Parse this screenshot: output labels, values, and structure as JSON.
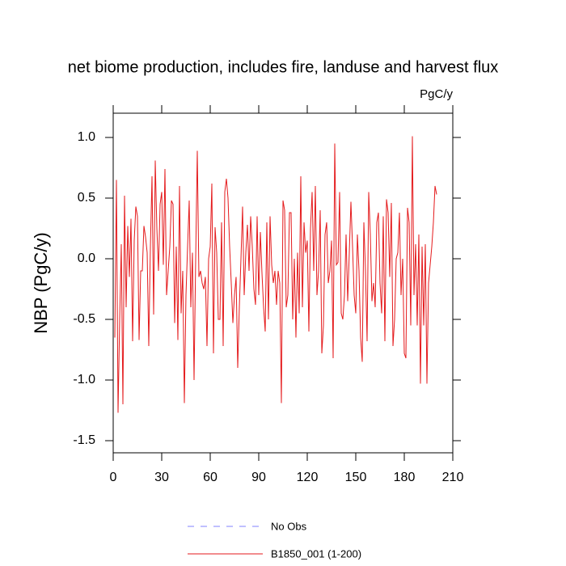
{
  "chart_data": {
    "type": "line",
    "title": "net biome production, includes fire, landuse and harvest flux",
    "units_label": "PgC/y",
    "y_label": "NBP  (PgC/y)",
    "xlim": [
      0,
      210
    ],
    "xticks": [
      0,
      30,
      60,
      90,
      120,
      150,
      180,
      210
    ],
    "ylim": [
      -1.6,
      1.2
    ],
    "yticks": [
      {
        "value": 1,
        "label": "1.0"
      },
      {
        "value": 0.5,
        "label": "0.5"
      },
      {
        "value": 0,
        "label": "0.0"
      },
      {
        "value": -0.5,
        "label": "-0.5"
      },
      {
        "value": -1,
        "label": "-1.0"
      },
      {
        "value": -1.5,
        "label": "-1.5"
      }
    ],
    "obs_legend": {
      "name": "No Obs",
      "color": "#8080ff",
      "dash": "8 8"
    },
    "x": [
      1,
      2,
      3,
      4,
      5,
      6,
      7,
      8,
      9,
      10,
      11,
      12,
      13,
      14,
      15,
      16,
      17,
      18,
      19,
      20,
      21,
      22,
      23,
      24,
      25,
      26,
      27,
      28,
      29,
      30,
      31,
      32,
      33,
      34,
      35,
      36,
      37,
      38,
      39,
      40,
      41,
      42,
      43,
      44,
      45,
      46,
      47,
      48,
      49,
      50,
      51,
      52,
      53,
      54,
      55,
      56,
      57,
      58,
      59,
      60,
      61,
      62,
      63,
      64,
      65,
      66,
      67,
      68,
      69,
      70,
      71,
      72,
      73,
      74,
      75,
      76,
      77,
      78,
      79,
      80,
      81,
      82,
      83,
      84,
      85,
      86,
      87,
      88,
      89,
      90,
      91,
      92,
      93,
      94,
      95,
      96,
      97,
      98,
      99,
      100,
      101,
      102,
      103,
      104,
      105,
      106,
      107,
      108,
      109,
      110,
      111,
      112,
      113,
      114,
      115,
      116,
      117,
      118,
      119,
      120,
      121,
      122,
      123,
      124,
      125,
      126,
      127,
      128,
      129,
      130,
      131,
      132,
      133,
      134,
      135,
      136,
      137,
      138,
      139,
      140,
      141,
      142,
      143,
      144,
      145,
      146,
      147,
      148,
      149,
      150,
      151,
      152,
      153,
      154,
      155,
      156,
      157,
      158,
      159,
      160,
      161,
      162,
      163,
      164,
      165,
      166,
      167,
      168,
      169,
      170,
      171,
      172,
      173,
      174,
      175,
      176,
      177,
      178,
      179,
      180,
      181,
      182,
      183,
      184,
      185,
      186,
      187,
      188,
      189,
      190,
      191,
      192,
      193,
      194,
      195,
      196,
      197,
      198,
      199,
      200
    ],
    "series": [
      {
        "name": "B1850_001 (1-200)",
        "color": "#e41a1c",
        "values": [
          -0.65,
          0.65,
          -1.27,
          -0.5,
          0.12,
          -1.2,
          0.52,
          -0.4,
          0.27,
          -0.15,
          0.33,
          -0.68,
          0.15,
          0.43,
          0.35,
          -0.67,
          -0.1,
          -0.1,
          0.27,
          0.18,
          0.05,
          -0.72,
          0.1,
          0.68,
          -0.46,
          0.81,
          0.25,
          -0.1,
          0.45,
          0.55,
          -0.05,
          0.74,
          -0.3,
          -0.1,
          0.1,
          0.48,
          0.45,
          -0.53,
          0.1,
          -0.67,
          0.6,
          -0.45,
          -0.1,
          -1.19,
          -0.3,
          0.1,
          0.48,
          -0.4,
          0.05,
          -1.0,
          0.0,
          0.89,
          -0.15,
          -0.1,
          -0.2,
          -0.25,
          -0.15,
          -0.72,
          0.0,
          0.1,
          0.62,
          -0.78,
          0.26,
          0.05,
          -0.5,
          -0.5,
          0.3,
          -0.72,
          0.55,
          0.66,
          0.5,
          0.1,
          -0.2,
          -0.53,
          -0.3,
          -0.15,
          -0.9,
          -0.4,
          0.0,
          0.43,
          -0.3,
          0.05,
          0.28,
          -0.1,
          0.35,
          0.1,
          -0.25,
          -0.38,
          0.35,
          -0.3,
          0.22,
          -0.12,
          -0.4,
          -0.6,
          0.3,
          -0.5,
          0.35,
          -0.05,
          -0.2,
          -0.1,
          -0.38,
          -0.1,
          -0.2,
          -1.19,
          0.48,
          0.4,
          -0.4,
          -0.3,
          0.38,
          0.38,
          -0.5,
          0.0,
          -0.65,
          0.05,
          -0.45,
          0.68,
          -0.4,
          0.3,
          0.05,
          0.15,
          -0.6,
          0.25,
          0.55,
          -0.1,
          0.6,
          -0.3,
          -0.1,
          0.4,
          -0.78,
          -0.55,
          0.2,
          0.3,
          -0.2,
          -0.1,
          0.15,
          -0.82,
          0.95,
          -0.05,
          -0.03,
          0.55,
          -0.45,
          -0.5,
          -0.3,
          0.2,
          -0.35,
          0.05,
          0.47,
          0.1,
          -0.3,
          -0.45,
          0.2,
          -0.1,
          -0.65,
          -0.85,
          0.3,
          -0.1,
          -0.68,
          0.55,
          0.2,
          -0.35,
          -0.2,
          -0.4,
          0.3,
          0.38,
          -0.2,
          -0.45,
          0.35,
          -0.68,
          0.49,
          0.38,
          -0.15,
          0.46,
          -0.72,
          -0.5,
          0.0,
          0.05,
          0.38,
          -0.3,
          0.0,
          -0.78,
          -0.82,
          0.42,
          0.3,
          -0.55,
          1.01,
          -0.3,
          0.12,
          -0.55,
          0.2,
          -1.03,
          0.1,
          -0.55,
          0.12,
          -1.03,
          -0.2,
          -0.05,
          0.1,
          0.3,
          0.6,
          0.53
        ]
      }
    ]
  }
}
